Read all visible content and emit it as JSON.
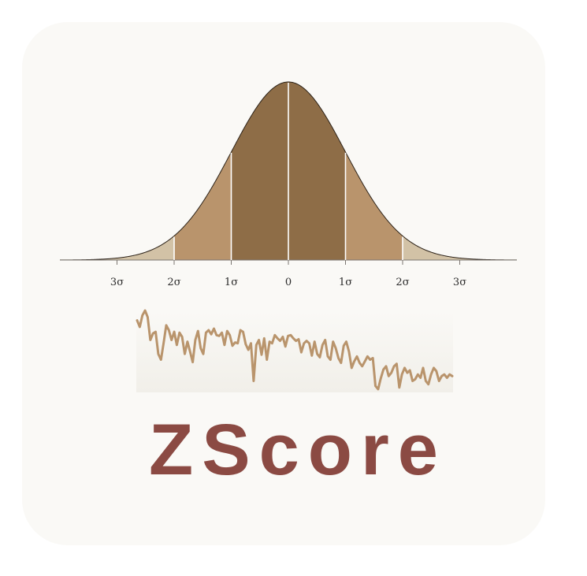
{
  "app": {
    "name": "ZScore"
  },
  "bell_curve": {
    "tick_labels": [
      "3σ",
      "2σ",
      "1σ",
      "0",
      "1σ",
      "2σ",
      "3σ"
    ],
    "band_colors": [
      "#d2c2a6",
      "#b9946c",
      "#8e6d47"
    ],
    "outline_color": "#2b2117"
  },
  "sparkline": {
    "color": "#b9946c",
    "values": [
      0.86,
      0.78,
      0.92,
      0.98,
      0.9,
      0.62,
      0.7,
      0.72,
      0.45,
      0.38,
      0.58,
      0.8,
      0.74,
      0.62,
      0.72,
      0.56,
      0.71,
      0.66,
      0.45,
      0.6,
      0.48,
      0.35,
      0.62,
      0.73,
      0.52,
      0.45,
      0.71,
      0.74,
      0.69,
      0.76,
      0.68,
      0.67,
      0.71,
      0.56,
      0.73,
      0.68,
      0.55,
      0.59,
      0.58,
      0.74,
      0.72,
      0.57,
      0.5,
      0.58,
      0.12,
      0.56,
      0.62,
      0.44,
      0.64,
      0.38,
      0.6,
      0.58,
      0.68,
      0.64,
      0.61,
      0.66,
      0.54,
      0.67,
      0.68,
      0.64,
      0.61,
      0.63,
      0.47,
      0.58,
      0.61,
      0.58,
      0.43,
      0.6,
      0.45,
      0.41,
      0.56,
      0.62,
      0.42,
      0.38,
      0.6,
      0.52,
      0.4,
      0.34,
      0.55,
      0.6,
      0.48,
      0.28,
      0.36,
      0.42,
      0.34,
      0.3,
      0.36,
      0.42,
      0.38,
      0.4,
      0.06,
      0.02,
      0.15,
      0.26,
      0.3,
      0.18,
      0.22,
      0.3,
      0.33,
      0.04,
      0.2,
      0.28,
      0.22,
      0.25,
      0.12,
      0.14,
      0.2,
      0.16,
      0.28,
      0.12,
      0.08,
      0.2,
      0.28,
      0.24,
      0.12,
      0.18,
      0.2,
      0.16,
      0.2,
      0.18
    ]
  }
}
